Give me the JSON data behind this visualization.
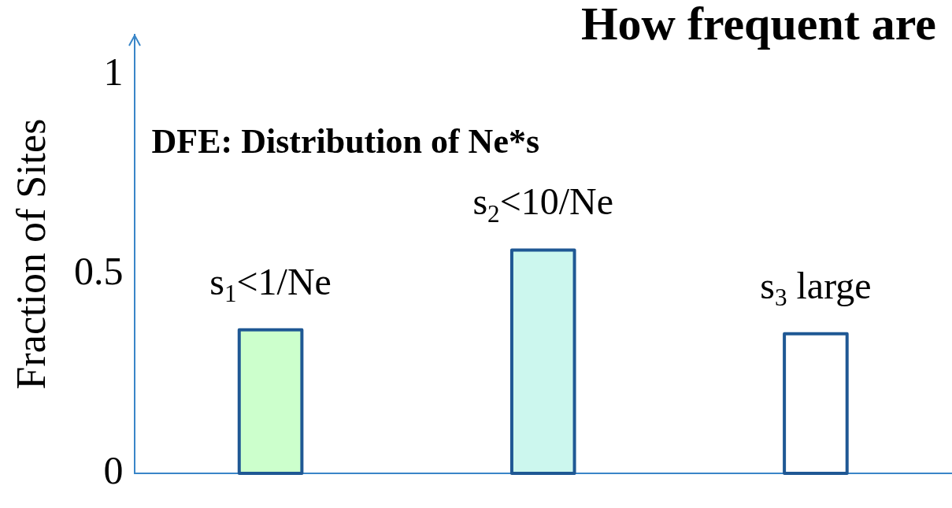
{
  "chart_data": {
    "type": "bar",
    "title": "How frequent are",
    "ylabel": "Fraction of Sites",
    "categories": [
      "s$_{1}$<1/Ne",
      "s$_{2}$<10/Ne",
      "s$_{3}$ large"
    ],
    "values": [
      0.36,
      0.56,
      0.35
    ],
    "colors": [
      "#ccffcc",
      "#ccf7ee",
      "#ffffff"
    ],
    "ylim": [
      0,
      1.1
    ],
    "yticks": [
      0,
      0.5,
      1
    ],
    "grid": false,
    "legend": false,
    "annotations": [
      "DFE: Distribution of Ne*s"
    ]
  }
}
